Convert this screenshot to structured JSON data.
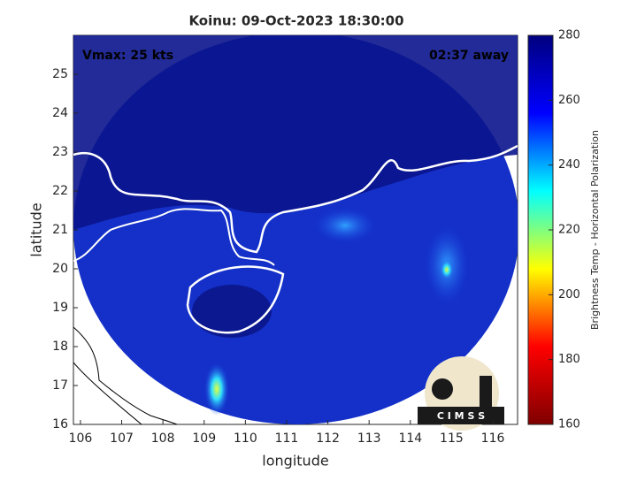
{
  "chart_data": {
    "type": "map",
    "title": "Koinu: 09-Oct-2023 18:30:00",
    "xlabel": "longitude",
    "ylabel": "latitude",
    "xlim": [
      105.83,
      116.6
    ],
    "xticks": [
      106,
      107,
      108,
      109,
      110,
      111,
      112,
      113,
      114,
      115,
      116
    ],
    "ylim": [
      16,
      26
    ],
    "yticks": [
      16,
      17,
      18,
      19,
      20,
      21,
      22,
      23,
      24,
      25
    ],
    "annotations": [
      "Vmax: 25 kts",
      "02:37 away"
    ],
    "colorbar": {
      "label": "Brightness Temp - Horizontal Polarization",
      "lim": [
        160,
        280
      ],
      "ticks": [
        160,
        180,
        200,
        220,
        240,
        260,
        280
      ],
      "colors": [
        "#7f0000",
        "#ff0000",
        "#ffff00",
        "#00ffff",
        "#0000ff",
        "#00007f"
      ]
    },
    "logo": "C I M S S"
  }
}
